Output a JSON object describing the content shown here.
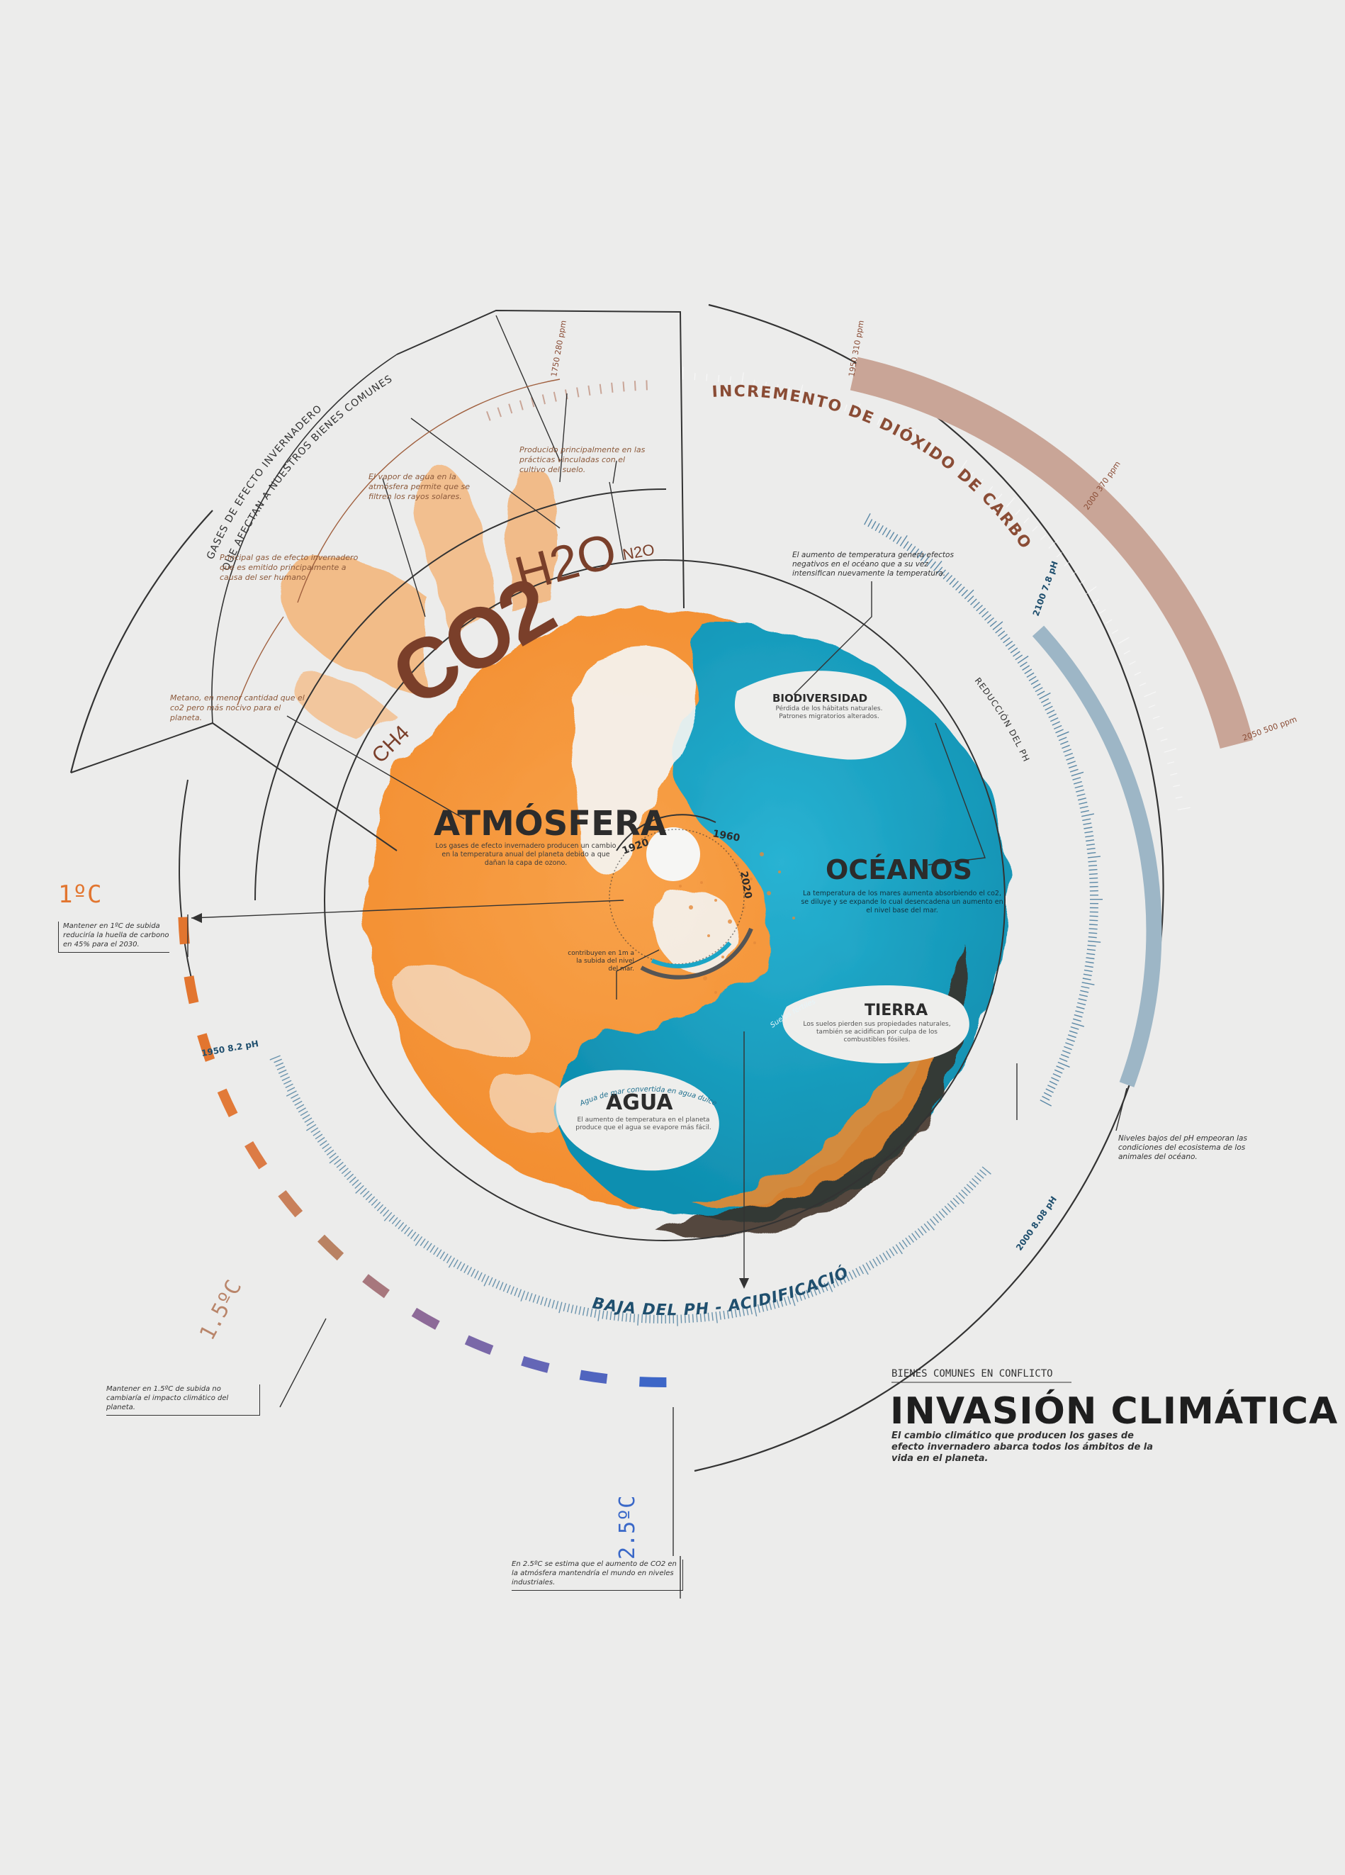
{
  "colors": {
    "background": "#ececeb",
    "orange": "#f59a3e",
    "teal": "#1ba5c6",
    "brown_text": "#8a4c35",
    "scale_brown": "#c9a597",
    "ph_blue": "#5b88a6",
    "line": "#333333"
  },
  "title_block": {
    "kicker": "BIENES COMUNES EN CONFLICTO",
    "title": "INVASIÓN CLIMÁTICA",
    "subtitle": "El cambio climático que producen los gases de efecto invernadero abarca todos los ámbitos de la vida en el planeta."
  },
  "gases": {
    "arc_label_line1": "GASES DE EFECTO INVERNADERO",
    "arc_label_line2": "QUE AFECTAN A NUESTROS BIENES COMUNES",
    "co2": "CO2",
    "h2o": "H2O",
    "n2o": "N2O",
    "ch4": "CH4",
    "note_n2o": "Producido principalmente en las prácticas vinculadas con el cultivo del suelo.",
    "note_h2o": "El vapor de agua en la atmósfera permite que se filtren los rayos solares.",
    "note_co2": "Principal gas de efecto invernadero que es emitido principalmente a causa del ser humano.",
    "note_ch4": "Metano, en menor cantidad que el co2 pero más nocivo para el planeta."
  },
  "co2_scale": {
    "label": "INCREMENTO DE DIÓXIDO DE CARBONO",
    "mark_start": "1750 280 ppm",
    "mark_1": "1950 310 ppm",
    "mark_2": "2000 370 ppm",
    "mark_end": "2050 500 ppm"
  },
  "ph_scale": {
    "label": "BAJA DEL PH - ACIDIFICACIÓN",
    "mark_start": "1950 8.2 pH",
    "mark_end": "2000 8.08 pH",
    "right_start": "2100 7.8 pH",
    "right_label": "REDUCCIÓN DEL PH"
  },
  "sections": {
    "atmosfera_title": "ATMÓSFERA",
    "atmosfera_text": "Los gases de efecto invernadero producen un cambio en la temperatura anual del planeta debido a que dañan la capa de ozono.",
    "oceanos_title": "OCÉANOS",
    "oceanos_text": "La temperatura de los mares aumenta absorbiendo el co2, se diluye y se expande lo cual desencadena un aumento en el nivel base del mar.",
    "biodiversidad_title": "BIODIVERSIDAD",
    "biodiversidad_text": "Pérdida de los hábitats naturales. Patrones migratorios alterados.",
    "tierra_title": "TIERRA",
    "tierra_text": "Los suelos pierden sus propiedades naturales, también se acidifican por culpa de los combustibles fósiles.",
    "agua_title": "AGUA",
    "agua_text": "El aumento de temperatura en el planeta produce que el agua se evapore más fácil.",
    "agua_arc": "Agua de mar convertida en agua dulce",
    "tierra_arc": "Suelos fértiles"
  },
  "center": {
    "y1920": "1920",
    "y1960": "1960",
    "y2020": "2020",
    "contrib_note": "contribuyen en 1m a la subida del nivel del mar."
  },
  "notes": {
    "temperature": "El aumento de temperatura genera efectos negativos en el océano que a su vez intensifican nuevamente la temperatura.",
    "ph": "Niveles bajos del pH empeoran las condiciones del ecosistema de los animales del océano."
  },
  "temperature": {
    "t1": "1ºC",
    "t1_text": "Mantener en 1ºC de subida reduciría la huella de carbono en 45% para el 2030.",
    "t15": "1.5ºC",
    "t15_text": "Mantener en 1.5ºC de subida no cambiaría el impacto climático del planeta.",
    "t25": "2.5ºC",
    "t25_text": "En 2.5ºC se estima que el aumento de CO2 en la atmósfera mantendría el mundo en niveles industriales."
  }
}
